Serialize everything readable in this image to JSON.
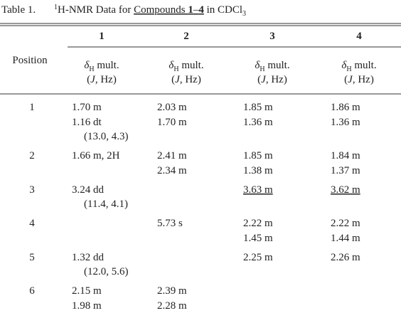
{
  "table": {
    "label": "Table 1.",
    "title": {
      "sup": "1",
      "before": "H-NMR Data for ",
      "underlined": "Compounds ",
      "first": "1",
      "dash": "–",
      "last": "4",
      "after": " in CDCl",
      "sub": "3"
    },
    "position_header": "Position",
    "columns": [
      {
        "label": "1",
        "symbol": "δ",
        "symbol_sub": "H",
        "mult": " mult.",
        "open": "(",
        "coupling": "J",
        "unit": ", Hz)"
      },
      {
        "label": "2",
        "symbol": "δ",
        "symbol_sub": "H",
        "mult": " mult.",
        "open": "(",
        "coupling": "J",
        "unit": ", Hz)"
      },
      {
        "label": "3",
        "symbol": "δ",
        "symbol_sub": "H",
        "mult": " mult.",
        "open": "(",
        "coupling": "J",
        "unit": ", Hz)"
      },
      {
        "label": "4",
        "symbol": "δ",
        "symbol_sub": "H",
        "mult": " mult.",
        "open": "(",
        "coupling": "J",
        "unit": ", Hz)"
      }
    ],
    "rows": [
      {
        "position": "1",
        "cells": [
          {
            "text": "1.70 m"
          },
          {
            "text": "2.03 m"
          },
          {
            "text": "1.85 m"
          },
          {
            "text": "1.86 m"
          }
        ]
      },
      {
        "position": null,
        "cells": [
          {
            "text": "1.16 dt",
            "j": "(13.0, 4.3)"
          },
          {
            "text": "1.70 m"
          },
          {
            "text": "1.36 m"
          },
          {
            "text": "1.36 m"
          }
        ]
      },
      {
        "position": "2",
        "cells": [
          {
            "text": "1.66 m, 2H"
          },
          {
            "text": "2.41 m"
          },
          {
            "text": "1.85 m"
          },
          {
            "text": "1.84 m"
          }
        ]
      },
      {
        "position": null,
        "cells": [
          null,
          {
            "text": "2.34 m"
          },
          {
            "text": "1.38 m"
          },
          {
            "text": "1.37 m"
          }
        ]
      },
      {
        "position": "3",
        "cells": [
          {
            "text": "3.24 dd",
            "j": "(11.4, 4.1)"
          },
          null,
          {
            "text": "3.63 m",
            "underlined": true
          },
          {
            "text": "3.62 m",
            "underlined": true
          }
        ]
      },
      {
        "position": "4",
        "cells": [
          null,
          {
            "text": "5.73 s"
          },
          {
            "text": "2.22 m"
          },
          {
            "text": "2.22 m"
          }
        ]
      },
      {
        "position": null,
        "cells": [
          null,
          null,
          {
            "text": "1.45 m"
          },
          {
            "text": "1.44 m"
          }
        ]
      },
      {
        "position": "5",
        "cells": [
          {
            "text": "1.32 dd",
            "j": "(12.0, 5.6)"
          },
          null,
          {
            "text": "2.25 m"
          },
          {
            "text": "2.26 m"
          }
        ]
      },
      {
        "position": "6",
        "cells": [
          {
            "text": "2.15 m"
          },
          {
            "text": "2.39 m"
          },
          null,
          null
        ]
      },
      {
        "position": null,
        "cells": [
          {
            "text": "1.98 m"
          },
          {
            "text": "2.28 m"
          },
          null,
          null
        ]
      }
    ]
  }
}
